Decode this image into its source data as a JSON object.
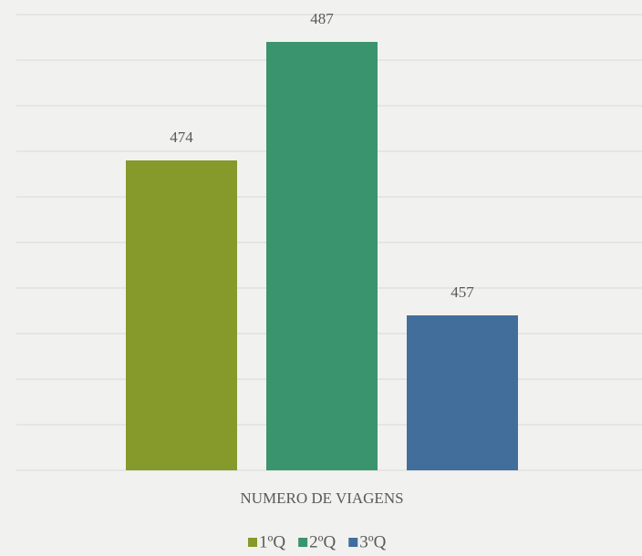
{
  "chart_data": {
    "type": "bar",
    "categories": [
      "NUMERO DE VIAGENS"
    ],
    "series": [
      {
        "name": "1ºQ",
        "color": "#859a2b",
        "values": [
          474
        ]
      },
      {
        "name": "2ºQ",
        "color": "#3a946e",
        "values": [
          487
        ]
      },
      {
        "name": "3ºQ",
        "color": "#426e9c",
        "values": [
          457
        ]
      }
    ],
    "ylim": [
      440,
      490
    ],
    "yticks": [
      440,
      445,
      450,
      455,
      460,
      465,
      470,
      475,
      480,
      485,
      490
    ],
    "grid": true,
    "legend": "bottom"
  }
}
